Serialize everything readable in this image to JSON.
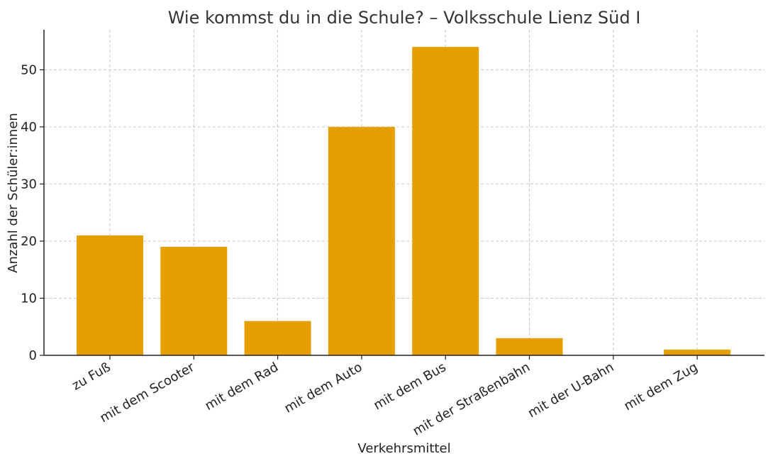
{
  "chart_data": {
    "type": "bar",
    "title": "Wie kommst du in die Schule? – Volksschule Lienz Süd I",
    "xlabel": "Verkehrsmittel",
    "ylabel": "Anzahl der Schüler:innen",
    "categories": [
      "zu Fuß",
      "mit dem Scooter",
      "mit dem Rad",
      "mit dem Auto",
      "mit dem Bus",
      "mit der Straßenbahn",
      "mit der U-Bahn",
      "mit dem Zug"
    ],
    "values": [
      21,
      19,
      6,
      40,
      54,
      3,
      0,
      1
    ],
    "ylim": [
      0,
      57
    ],
    "yticks": [
      0,
      10,
      20,
      30,
      40,
      50
    ],
    "grid": true,
    "bar_color": "#E69F00",
    "legend": "none"
  }
}
